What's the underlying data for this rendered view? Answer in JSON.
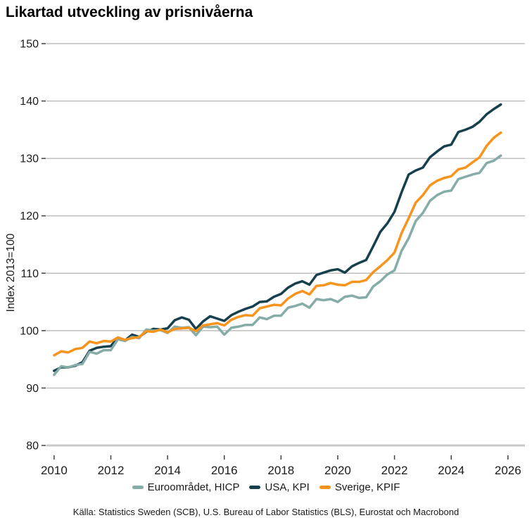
{
  "header": {
    "title": "Likartad utveckling av prisnivåerna"
  },
  "footer": {
    "source": "Källa: Statistics Sweden (SCB), U.S. Bureau of Labor Statistics (BLS), Eurostat och Macrobond"
  },
  "colors": {
    "gridline": "#b2b2b2",
    "axis_line": "#c9c9c9",
    "tick_mark": "#404040",
    "text": "#1a1a1a"
  },
  "chart_data": {
    "type": "line",
    "title": "Likartad utveckling av prisnivåerna",
    "xlabel": "",
    "ylabel": "Index 2013=100",
    "x_start": 2010.0,
    "x_step": 0.25,
    "x_end": 2025.75,
    "xlim": [
      2009.73,
      2026.6
    ],
    "ylim": [
      80,
      150
    ],
    "x_ticks": [
      2010,
      2012,
      2014,
      2016,
      2018,
      2020,
      2022,
      2024,
      2026
    ],
    "y_ticks": [
      80,
      90,
      100,
      110,
      120,
      130,
      140,
      150
    ],
    "grid": "horizontal",
    "legend_position": "bottom",
    "series": [
      {
        "name": "Euroområdet, HICP",
        "color": "#85aca6",
        "values": [
          92.3,
          93.8,
          93.6,
          94.0,
          94.2,
          96.3,
          96.0,
          96.6,
          96.6,
          98.5,
          98.2,
          98.9,
          98.7,
          100.2,
          100.0,
          100.1,
          99.6,
          100.7,
          100.5,
          100.6,
          99.2,
          100.7,
          100.6,
          100.7,
          99.3,
          100.5,
          100.7,
          101.0,
          101.0,
          102.3,
          102.0,
          102.6,
          102.6,
          104.0,
          104.3,
          104.7,
          104.0,
          105.5,
          105.3,
          105.5,
          105.0,
          105.9,
          106.1,
          105.7,
          105.8,
          107.7,
          108.6,
          109.8,
          110.5,
          113.9,
          116.1,
          119.1,
          120.5,
          122.6,
          123.6,
          124.2,
          124.4,
          126.4,
          126.8,
          127.2,
          127.5,
          129.2,
          129.6,
          130.5
        ]
      },
      {
        "name": "USA, KPI",
        "color": "#16404d",
        "values": [
          93.0,
          93.6,
          93.6,
          93.9,
          94.5,
          96.5,
          97.0,
          97.2,
          97.3,
          98.8,
          98.3,
          99.3,
          98.9,
          99.8,
          100.3,
          100.2,
          100.4,
          101.8,
          102.3,
          101.9,
          100.3,
          101.6,
          102.5,
          102.1,
          101.7,
          102.7,
          103.3,
          103.8,
          104.2,
          105.0,
          105.1,
          105.9,
          106.4,
          107.5,
          108.2,
          108.6,
          108.0,
          109.7,
          110.1,
          110.5,
          110.7,
          110.1,
          111.2,
          111.8,
          112.3,
          114.7,
          117.2,
          118.7,
          120.7,
          124.1,
          127.2,
          127.9,
          128.4,
          130.2,
          131.2,
          132.1,
          132.4,
          134.6,
          135.0,
          135.5,
          136.4,
          137.7,
          138.6,
          139.4
        ]
      },
      {
        "name": "Sverige, KPIF",
        "color": "#f7941d",
        "values": [
          95.7,
          96.4,
          96.2,
          96.8,
          97.0,
          98.1,
          97.8,
          98.2,
          98.1,
          98.8,
          98.4,
          98.7,
          98.9,
          99.9,
          99.8,
          100.2,
          99.7,
          100.3,
          100.4,
          100.5,
          99.9,
          100.9,
          101.1,
          101.3,
          100.9,
          101.9,
          102.4,
          102.7,
          102.6,
          103.9,
          104.2,
          104.5,
          104.4,
          105.6,
          106.4,
          106.9,
          106.3,
          107.8,
          107.9,
          108.3,
          108.0,
          107.9,
          108.5,
          108.5,
          108.8,
          110.2,
          111.2,
          112.3,
          113.6,
          117.0,
          119.6,
          122.3,
          123.6,
          125.3,
          126.1,
          126.6,
          126.9,
          128.1,
          128.4,
          129.3,
          130.2,
          132.2,
          133.6,
          134.5
        ]
      }
    ]
  }
}
